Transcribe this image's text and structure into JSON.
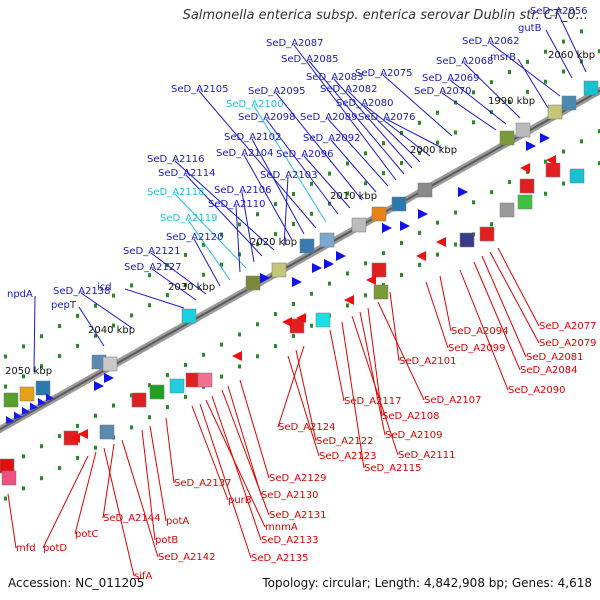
{
  "title": "Salmonella enterica subsp. enterica serovar Dublin str. CT_0...",
  "footer": {
    "accession": "Accession: NC_011205",
    "topology": "Topology: circular; Length: 4,842,908 bp; Genes: 4,618"
  },
  "colors": {
    "forward_label": "#1a1ad0",
    "forward_label_alt": "#21c0e6",
    "reverse_label": "#e00000",
    "backbone": "#8a8a8a",
    "tick": "#2a8a2a"
  },
  "kbp_ticks": [
    "1990 kbp",
    "2000 kbp",
    "2010 kbp",
    "2020 kbp",
    "2030 kbp",
    "2040 kbp",
    "2050 kbp",
    "2060 kbp"
  ],
  "forward_genes": [
    {
      "label": "SeD_A2056",
      "hl": false
    },
    {
      "label": "gutB",
      "hl": false
    },
    {
      "label": "SeD_A2062",
      "hl": false
    },
    {
      "label": "msrB",
      "hl": false
    },
    {
      "label": "SeD_A2068",
      "hl": false
    },
    {
      "label": "SeD_A2069",
      "hl": false
    },
    {
      "label": "SeD_A2070",
      "hl": false
    },
    {
      "label": "SeD_A2075",
      "hl": false
    },
    {
      "label": "SeD_A2076",
      "hl": false
    },
    {
      "label": "SeD_A2080",
      "hl": false
    },
    {
      "label": "SeD_A2082",
      "hl": false
    },
    {
      "label": "SeD_A2083",
      "hl": false
    },
    {
      "label": "SeD_A2085",
      "hl": false
    },
    {
      "label": "SeD_A2087",
      "hl": false
    },
    {
      "label": "SeD_A2089",
      "hl": false
    },
    {
      "label": "SeD_A2092",
      "hl": false
    },
    {
      "label": "SeD_A2095",
      "hl": false
    },
    {
      "label": "SeD_A2096",
      "hl": false
    },
    {
      "label": "SeD_A2098",
      "hl": false
    },
    {
      "label": "SeD_A2100",
      "hl": true
    },
    {
      "label": "SeD_A2105",
      "hl": false
    },
    {
      "label": "SeD_A2102",
      "hl": false
    },
    {
      "label": "SeD_A2104",
      "hl": false
    },
    {
      "label": "SeD_A2103",
      "hl": false
    },
    {
      "label": "SeD_A2116",
      "hl": false
    },
    {
      "label": "SeD_A2114",
      "hl": false
    },
    {
      "label": "SeD_A2106",
      "hl": false
    },
    {
      "label": "SeD_A2118",
      "hl": true
    },
    {
      "label": "SeD_A2110",
      "hl": false
    },
    {
      "label": "SeD_A2119",
      "hl": true
    },
    {
      "label": "SeD_A2120",
      "hl": false
    },
    {
      "label": "SeD_A2121",
      "hl": false
    },
    {
      "label": "SeD_A2127",
      "hl": false
    },
    {
      "label": "icd",
      "hl": false
    },
    {
      "label": "SeD_A2138",
      "hl": false
    },
    {
      "label": "pepT",
      "hl": false
    },
    {
      "label": "npdA",
      "hl": false
    }
  ],
  "reverse_genes": [
    "SeD_A2077",
    "SeD_A2079",
    "SeD_A2081",
    "SeD_A2084",
    "SeD_A2090",
    "SeD_A2094",
    "SeD_A2099",
    "SeD_A2101",
    "SeD_A2107",
    "SeD_A2108",
    "SeD_A2109",
    "SeD_A2111",
    "SeD_A2115",
    "SeD_A2117",
    "SeD_A2124",
    "SeD_A2122",
    "SeD_A2123",
    "SeD_A2129",
    "SeD_A2130",
    "SeD_A2131",
    "SeD_A2133",
    "SeD_A2135",
    "mnmA",
    "purB",
    "SeD_A2137",
    "potA",
    "potB",
    "SeD_A2144",
    "SeD_A2142",
    "sifA",
    "potC",
    "potD",
    "mfd"
  ]
}
